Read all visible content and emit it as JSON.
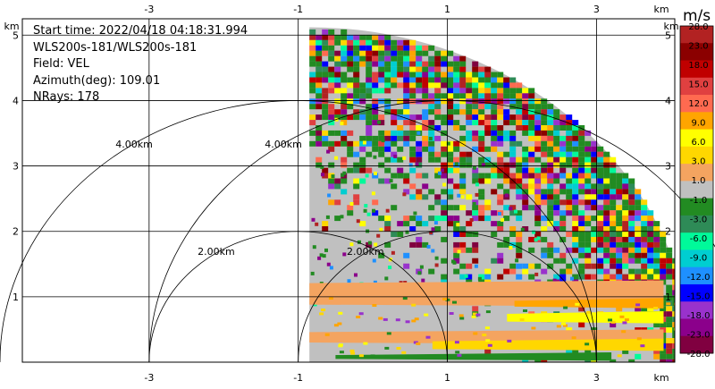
{
  "info": {
    "start_time": "Start time: 2022/04/18 04:18:31.994",
    "site": "WLS200s-181/WLS200s-181",
    "field": "Field: VEL",
    "azimuth": "Azimuth(deg): 109.01",
    "nrays": "NRays: 178"
  },
  "colorbar": {
    "unit": "m/s",
    "ticks": [
      "28.0",
      "23.0",
      "18.0",
      "15.0",
      "12.0",
      "9.0",
      "6.0",
      "3.0",
      "1.0",
      "-1.0",
      "-3.0",
      "-6.0",
      "-9.0",
      "-12.0",
      "-15.0",
      "-18.0",
      "-23.0",
      "-28.0"
    ],
    "colors": [
      "#b22222",
      "#8b0000",
      "#c00000",
      "#e04040",
      "#ff6a50",
      "#ffa500",
      "#ffff00",
      "#ffd700",
      "#f4a460",
      "#c0c0c0",
      "#228b22",
      "#2e8b57",
      "#00fa9a",
      "#00ced1",
      "#1e90ff",
      "#0000ff",
      "#9932cc",
      "#8b008b",
      "#800040"
    ]
  },
  "chart_data": {
    "type": "ppi",
    "x_unit": "km",
    "y_unit": "km",
    "xlim": [
      -4.7,
      4.05
    ],
    "ylim": [
      0,
      5.25
    ],
    "x_ticks": [
      -3,
      -1,
      1,
      3
    ],
    "y_ticks": [
      1,
      2,
      3,
      4,
      5
    ],
    "range_rings": [
      {
        "center": [
          -1,
          0
        ],
        "radius": 2,
        "label": "2.00km"
      },
      {
        "center": [
          -1,
          0
        ],
        "radius": 4,
        "label": "4.00km"
      },
      {
        "center": [
          1,
          0
        ],
        "radius": 2,
        "label": "2.00km"
      },
      {
        "center": [
          1,
          0
        ],
        "radius": 4,
        "label": "4.00km"
      }
    ],
    "sector": {
      "x_min": -0.85,
      "max_range_km": 5.12
    },
    "bands": [
      {
        "value": 1.0,
        "r0": 0.3,
        "r1": 0.55,
        "y_max": 0.55
      },
      {
        "value": 3.0,
        "r0": 0.15,
        "r1": 0.45,
        "y_max": 0.3
      },
      {
        "value": 1.0,
        "r0": 0.8,
        "r1": 1.2,
        "y_max": 1.3
      }
    ]
  }
}
